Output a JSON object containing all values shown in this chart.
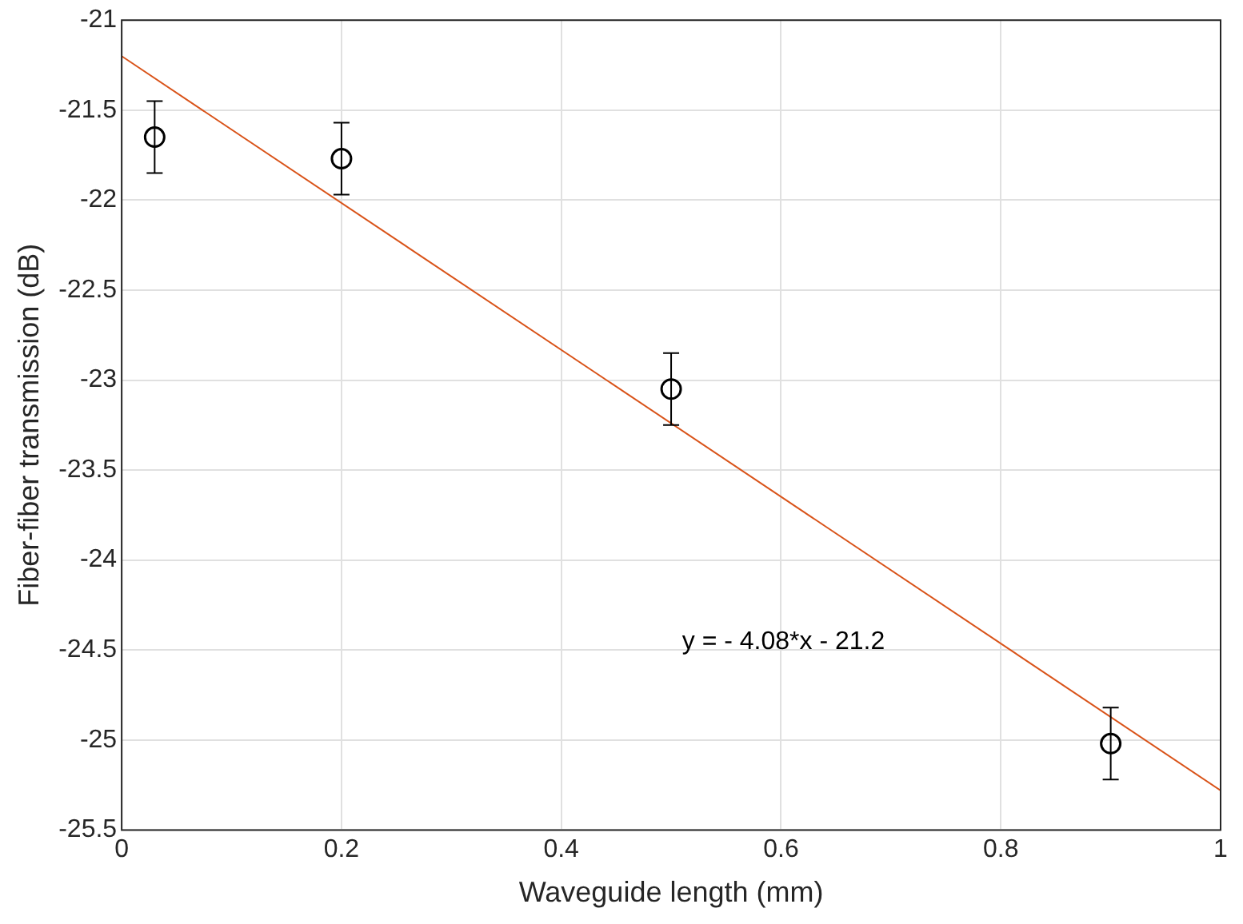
{
  "chart_data": {
    "type": "scatter",
    "xlabel": "Waveguide length (mm)",
    "ylabel": "Fiber-fiber transmission (dB)",
    "xlim": [
      0,
      1
    ],
    "xticks": [
      0,
      0.2,
      0.4,
      0.6,
      0.8,
      1
    ],
    "ylim": [
      -25.5,
      -21
    ],
    "yticks": [
      -25.5,
      -25,
      -24.5,
      -24,
      -23.5,
      -23,
      -22.5,
      -22,
      -21.5,
      -21
    ],
    "grid": true,
    "legend": false,
    "series": [
      {
        "color": "#000000",
        "x": [
          0.03,
          0.2,
          0.5,
          0.9
        ],
        "values": [
          -21.65,
          -21.77,
          -23.05,
          -25.02
        ],
        "errors": [
          0.2,
          0.2,
          0.2,
          0.2
        ],
        "marker": "circle"
      },
      {
        "type": "line",
        "color": "#d95319",
        "x": [
          0,
          1
        ],
        "values": [
          -21.2,
          -25.28
        ],
        "line_style": "solid",
        "marker": "none"
      }
    ],
    "annotations": [
      "y = - 4.08*x - 21.2"
    ]
  }
}
